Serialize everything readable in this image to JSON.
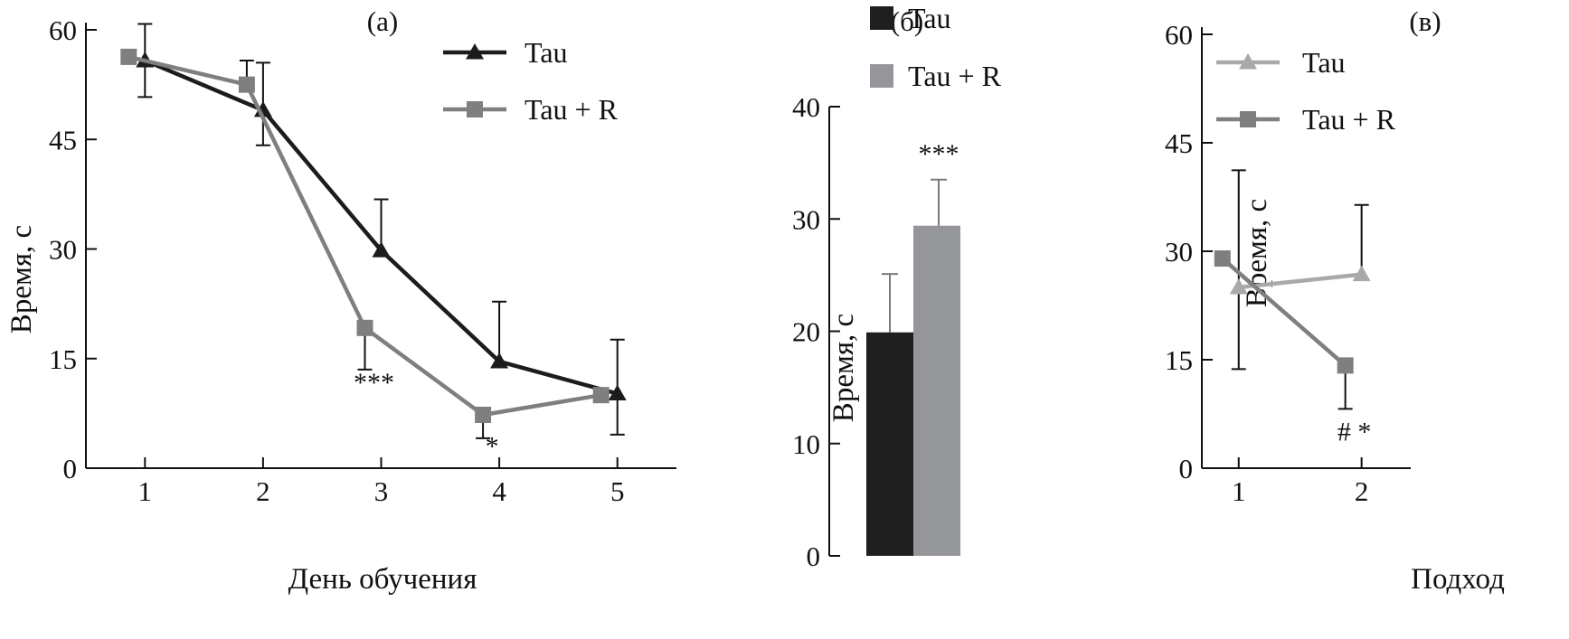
{
  "colors": {
    "axis": "#111111",
    "tau_dark": "#1c1c1c",
    "tau_r_gray": "#7f7f7f",
    "tau_light_gray": "#a9a9a9",
    "bar_tau": "#1f1f1f",
    "bar_tau_r": "#95969a"
  },
  "chart_data": [
    {
      "id": "a",
      "type": "line",
      "panel_label": "(а)",
      "xlabel": "День обучения",
      "ylabel": "Время, с",
      "x": [
        1,
        2,
        3,
        4,
        5
      ],
      "x_ticks": [
        "1",
        "2",
        "3",
        "4",
        "5"
      ],
      "xlim": [
        0.5,
        5.5
      ],
      "ylim": [
        0,
        60
      ],
      "y_ticks": [
        "0",
        "15",
        "30",
        "45",
        "60"
      ],
      "legend": "top-right",
      "series": [
        {
          "name": "Tau",
          "marker": "triangle",
          "color": "#1c1c1c",
          "x": [
            1,
            2,
            3,
            4,
            5
          ],
          "values": [
            55.8,
            49,
            29.8,
            14.6,
            10.2
          ],
          "errors_up": [
            5,
            6.5,
            7,
            8.2,
            7.4
          ],
          "errors_down": [
            5,
            4.8,
            0,
            0,
            5.6
          ]
        },
        {
          "name": "Tau + R",
          "marker": "square",
          "color": "#7f7f7f",
          "x": [
            1,
            2,
            3,
            4,
            5
          ],
          "values": [
            56.3,
            52.5,
            19.2,
            7.3,
            10
          ],
          "errors_up": [
            0,
            3.3,
            0,
            0,
            0
          ],
          "errors_down": [
            0,
            0,
            5.7,
            3.2,
            0
          ]
        }
      ],
      "annotations": [
        {
          "text": "***",
          "x": 3,
          "y": 10.5
        },
        {
          "text": "*",
          "x": 4,
          "y": 1.8
        }
      ]
    },
    {
      "id": "b",
      "type": "bar",
      "panel_label": "(б)",
      "xlabel": "",
      "ylabel": "Время, с",
      "ylim": [
        0,
        40
      ],
      "y_ticks": [
        "0",
        "10",
        "20",
        "30",
        "40"
      ],
      "legend": "top",
      "series": [
        {
          "name": "Tau",
          "color": "#1f1f1f",
          "value": 19.9,
          "error": 5.2
        },
        {
          "name": "Tau + R",
          "color": "#95969a",
          "value": 29.4,
          "error": 4.1
        }
      ],
      "annotations": [
        {
          "text": "***",
          "series": 1,
          "y": 35
        }
      ]
    },
    {
      "id": "c",
      "type": "line",
      "panel_label": "(в)",
      "xlabel": "Подход",
      "ylabel": "Время, с",
      "x": [
        1,
        2
      ],
      "x_ticks": [
        "1",
        "2"
      ],
      "xlim": [
        0.7,
        2.4
      ],
      "ylim": [
        0,
        60
      ],
      "y_ticks": [
        "0",
        "15",
        "30",
        "45",
        "60"
      ],
      "legend": "top-right",
      "series": [
        {
          "name": "Tau",
          "marker": "triangle",
          "color": "#a9a9a9",
          "x": [
            1,
            2
          ],
          "values": [
            25,
            26.8
          ],
          "errors_up": [
            16.2,
            9.6
          ],
          "errors_down": [
            11.3,
            0
          ]
        },
        {
          "name": "Tau + R",
          "marker": "square",
          "color": "#7f7f7f",
          "x": [
            1,
            2
          ],
          "values": [
            29,
            14.2
          ],
          "errors_up": [
            0,
            0
          ],
          "errors_down": [
            0,
            6
          ]
        }
      ],
      "annotations": [
        {
          "text": "# *",
          "x": 2,
          "y": 3.8
        }
      ]
    }
  ]
}
